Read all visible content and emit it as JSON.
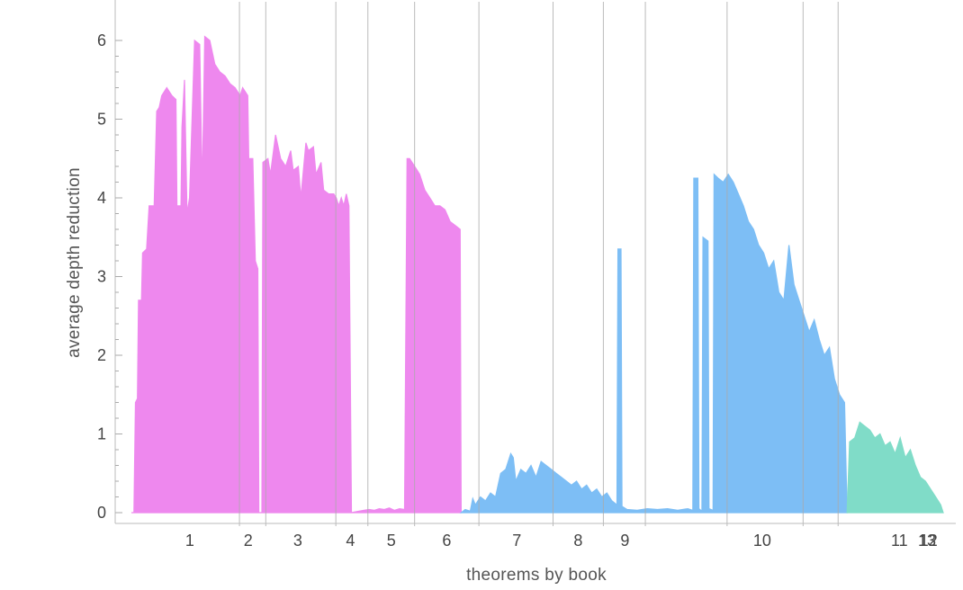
{
  "chart_data": {
    "type": "area",
    "title": "",
    "xlabel": "theorems by book",
    "ylabel": "average depth reduction",
    "xlim": [
      0,
      13.9
    ],
    "ylim": [
      0,
      6.4
    ],
    "y_ticks": [
      0,
      1,
      2,
      3,
      4,
      5,
      6
    ],
    "grid": "vertical book dividers",
    "book_boundaries": [
      1.85,
      2.3,
      3.5,
      4.05,
      4.85,
      5.95,
      7.22,
      8.08,
      8.8,
      10.2,
      11.5,
      12.1
    ],
    "book_labels": [
      {
        "label": "1",
        "x": 1.0
      },
      {
        "label": "2",
        "x": 2.0
      },
      {
        "label": "3",
        "x": 2.85
      },
      {
        "label": "4",
        "x": 3.75
      },
      {
        "label": "5",
        "x": 4.45
      },
      {
        "label": "6",
        "x": 5.4
      },
      {
        "label": "7",
        "x": 6.6
      },
      {
        "label": "8",
        "x": 7.65
      },
      {
        "label": "9",
        "x": 8.45
      },
      {
        "label": "10",
        "x": 10.8
      },
      {
        "label": "11",
        "x": 13.15
      },
      {
        "label": "12",
        "x": 13.65
      },
      {
        "label": "13",
        "x": 14.1
      }
    ],
    "series": [
      {
        "color": "#ee88ee",
        "points": [
          [
            0,
            0
          ],
          [
            0.05,
            0
          ],
          [
            0.08,
            1.4
          ],
          [
            0.12,
            1.45
          ],
          [
            0.14,
            2.7
          ],
          [
            0.2,
            2.7
          ],
          [
            0.22,
            3.3
          ],
          [
            0.3,
            3.35
          ],
          [
            0.35,
            3.9
          ],
          [
            0.45,
            3.9
          ],
          [
            0.5,
            5.1
          ],
          [
            0.55,
            5.15
          ],
          [
            0.6,
            5.3
          ],
          [
            0.7,
            5.4
          ],
          [
            0.8,
            5.3
          ],
          [
            0.88,
            5.25
          ],
          [
            0.9,
            3.9
          ],
          [
            0.98,
            3.9
          ],
          [
            1.0,
            4.9
          ],
          [
            1.05,
            5.5
          ],
          [
            1.1,
            3.8
          ],
          [
            1.15,
            4.0
          ],
          [
            1.25,
            6.0
          ],
          [
            1.35,
            5.95
          ],
          [
            1.4,
            4.1
          ],
          [
            1.45,
            6.05
          ],
          [
            1.55,
            6.0
          ],
          [
            1.65,
            5.7
          ],
          [
            1.75,
            5.6
          ],
          [
            1.85,
            5.55
          ],
          [
            1.95,
            5.45
          ],
          [
            2.05,
            5.4
          ],
          [
            2.15,
            5.3
          ],
          [
            2.2,
            5.4
          ],
          [
            2.3,
            5.3
          ],
          [
            2.32,
            4.5
          ],
          [
            2.4,
            4.5
          ],
          [
            2.45,
            3.2
          ],
          [
            2.5,
            3.1
          ],
          [
            2.52,
            0
          ],
          [
            2.58,
            0
          ],
          [
            2.6,
            4.45
          ],
          [
            2.7,
            4.5
          ],
          [
            2.75,
            4.3
          ],
          [
            2.85,
            4.8
          ],
          [
            2.95,
            4.5
          ],
          [
            3.05,
            4.4
          ],
          [
            3.15,
            4.6
          ],
          [
            3.2,
            4.35
          ],
          [
            3.3,
            4.4
          ],
          [
            3.35,
            4.0
          ],
          [
            3.45,
            4.7
          ],
          [
            3.5,
            4.6
          ],
          [
            3.6,
            4.65
          ],
          [
            3.65,
            4.3
          ],
          [
            3.75,
            4.45
          ],
          [
            3.8,
            4.1
          ],
          [
            3.9,
            4.05
          ],
          [
            4.0,
            4.05
          ],
          [
            4.05,
            4.0
          ],
          [
            4.1,
            3.9
          ],
          [
            4.15,
            4.0
          ],
          [
            4.2,
            3.9
          ],
          [
            4.25,
            4.05
          ],
          [
            4.3,
            3.9
          ],
          [
            4.35,
            0
          ],
          [
            4.5,
            0.02
          ],
          [
            4.6,
            0.03
          ],
          [
            4.7,
            0.04
          ],
          [
            4.8,
            0.03
          ],
          [
            4.9,
            0.05
          ],
          [
            5.0,
            0.04
          ],
          [
            5.1,
            0.06
          ],
          [
            5.2,
            0.03
          ],
          [
            5.3,
            0.05
          ],
          [
            5.4,
            0.04
          ],
          [
            5.45,
            4.5
          ],
          [
            5.5,
            4.5
          ],
          [
            5.6,
            4.4
          ],
          [
            5.7,
            4.3
          ],
          [
            5.8,
            4.1
          ],
          [
            5.9,
            4.0
          ],
          [
            6.0,
            3.9
          ],
          [
            6.1,
            3.9
          ],
          [
            6.2,
            3.85
          ],
          [
            6.3,
            3.7
          ],
          [
            6.4,
            3.65
          ],
          [
            6.5,
            3.6
          ],
          [
            6.52,
            0
          ]
        ]
      },
      {
        "color": "#7dbef5",
        "points": [
          [
            6.52,
            0
          ],
          [
            6.6,
            0.04
          ],
          [
            6.7,
            0.02
          ],
          [
            6.75,
            0.18
          ],
          [
            6.8,
            0.1
          ],
          [
            6.9,
            0.2
          ],
          [
            7.0,
            0.15
          ],
          [
            7.1,
            0.25
          ],
          [
            7.2,
            0.2
          ],
          [
            7.3,
            0.5
          ],
          [
            7.4,
            0.55
          ],
          [
            7.5,
            0.75
          ],
          [
            7.55,
            0.7
          ],
          [
            7.6,
            0.4
          ],
          [
            7.7,
            0.55
          ],
          [
            7.8,
            0.5
          ],
          [
            7.9,
            0.6
          ],
          [
            8.0,
            0.45
          ],
          [
            8.1,
            0.65
          ],
          [
            8.2,
            0.6
          ],
          [
            8.3,
            0.55
          ],
          [
            8.4,
            0.5
          ],
          [
            8.5,
            0.45
          ],
          [
            8.6,
            0.4
          ],
          [
            8.7,
            0.35
          ],
          [
            8.8,
            0.4
          ],
          [
            8.9,
            0.3
          ],
          [
            9.0,
            0.35
          ],
          [
            9.1,
            0.25
          ],
          [
            9.2,
            0.3
          ],
          [
            9.3,
            0.2
          ],
          [
            9.4,
            0.25
          ],
          [
            9.5,
            0.15
          ],
          [
            9.6,
            0.1
          ],
          [
            9.62,
            3.35
          ],
          [
            9.68,
            3.35
          ],
          [
            9.7,
            0.08
          ],
          [
            9.8,
            0.04
          ],
          [
            10.0,
            0.03
          ],
          [
            10.2,
            0.05
          ],
          [
            10.4,
            0.04
          ],
          [
            10.6,
            0.05
          ],
          [
            10.8,
            0.03
          ],
          [
            11.0,
            0.05
          ],
          [
            11.1,
            0.03
          ],
          [
            11.12,
            4.25
          ],
          [
            11.2,
            4.25
          ],
          [
            11.22,
            0.05
          ],
          [
            11.28,
            0.02
          ],
          [
            11.3,
            3.5
          ],
          [
            11.4,
            3.45
          ],
          [
            11.42,
            0.05
          ],
          [
            11.5,
            0.03
          ],
          [
            11.52,
            4.3
          ],
          [
            11.6,
            4.25
          ],
          [
            11.7,
            4.2
          ],
          [
            11.8,
            4.3
          ],
          [
            11.9,
            4.2
          ],
          [
            12.0,
            4.05
          ],
          [
            12.1,
            3.9
          ],
          [
            12.2,
            3.7
          ],
          [
            12.3,
            3.6
          ],
          [
            12.4,
            3.4
          ],
          [
            12.5,
            3.3
          ],
          [
            12.6,
            3.1
          ],
          [
            12.7,
            3.2
          ],
          [
            12.8,
            2.8
          ],
          [
            12.9,
            2.7
          ],
          [
            13.0,
            3.4
          ],
          [
            13.1,
            2.9
          ],
          [
            13.2,
            2.7
          ],
          [
            13.3,
            2.5
          ],
          [
            13.4,
            2.3
          ],
          [
            13.5,
            2.45
          ],
          [
            13.6,
            2.2
          ],
          [
            13.7,
            2.0
          ],
          [
            13.8,
            2.1
          ],
          [
            13.9,
            1.7
          ],
          [
            14.0,
            1.5
          ],
          [
            14.1,
            1.4
          ],
          [
            14.15,
            0
          ]
        ]
      },
      {
        "color": "#80dcc8",
        "points": [
          [
            14.15,
            0
          ],
          [
            14.2,
            0.9
          ],
          [
            14.3,
            0.95
          ],
          [
            14.4,
            1.15
          ],
          [
            14.5,
            1.1
          ],
          [
            14.6,
            1.05
          ],
          [
            14.7,
            0.95
          ],
          [
            14.8,
            1.0
          ],
          [
            14.9,
            0.85
          ],
          [
            15.0,
            0.9
          ],
          [
            15.1,
            0.75
          ],
          [
            15.2,
            0.95
          ],
          [
            15.3,
            0.7
          ],
          [
            15.4,
            0.8
          ],
          [
            15.5,
            0.6
          ],
          [
            15.6,
            0.45
          ],
          [
            15.7,
            0.4
          ],
          [
            15.8,
            0.3
          ],
          [
            15.9,
            0.2
          ],
          [
            16.0,
            0.1
          ],
          [
            16.05,
            0
          ]
        ]
      }
    ]
  }
}
